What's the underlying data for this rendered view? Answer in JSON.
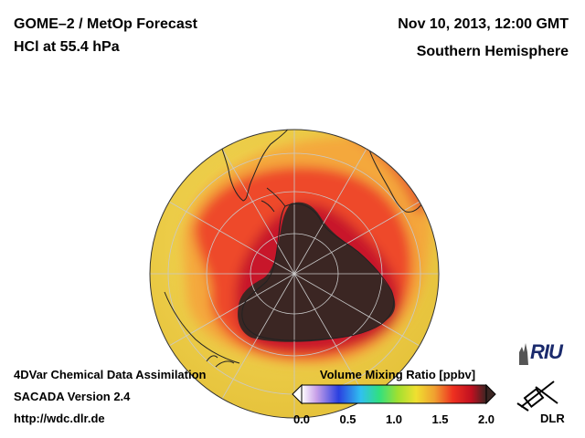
{
  "header": {
    "product_title": "GOME–2 / MetOp Forecast",
    "species_level": "HCl at 55.4 hPa",
    "datetime": "Nov 10, 2013, 12:00 GMT",
    "region": "Southern Hemisphere"
  },
  "footer": {
    "line1": "4DVar Chemical Data Assimilation",
    "line2": "SACADA Version 2.4",
    "line3": "http://wdc.dlr.de"
  },
  "legend": {
    "title": "Volume Mixing Ratio [ppbv]",
    "ticks": [
      "0.0",
      "0.5",
      "1.0",
      "1.5",
      "2.0"
    ],
    "range": [
      0.0,
      2.0
    ]
  },
  "logos": {
    "riu": "RIU",
    "dlr": "DLR"
  },
  "colors": {
    "globe_background": "#f1d34a",
    "low_band": "#f5a43a",
    "mid_band": "#ee4a2c",
    "high_band": "#c8142a",
    "vortex": "#3b2623",
    "coast": "#222222",
    "grid": "#c9c9c9"
  }
}
